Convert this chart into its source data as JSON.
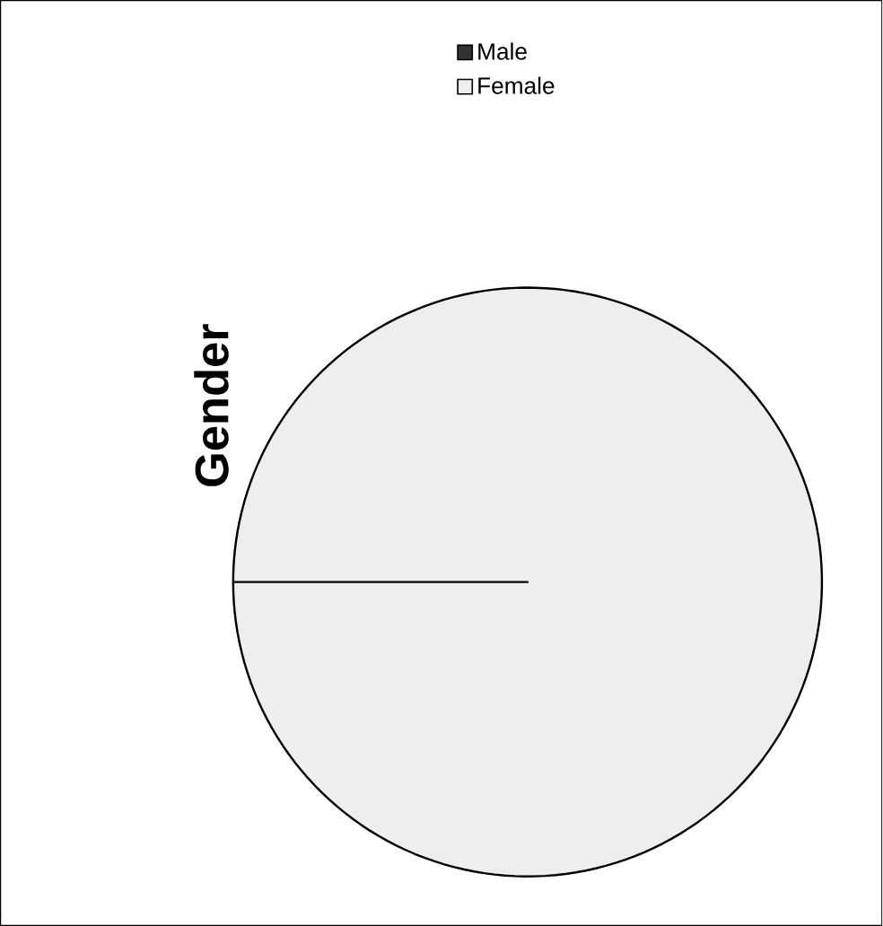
{
  "chart_data": {
    "type": "pie",
    "title": "Gender",
    "categories": [
      "Male",
      "Female"
    ],
    "values": [
      0,
      100
    ],
    "colors": [
      "#333333",
      "#eeeeee"
    ],
    "legend": "top right"
  }
}
